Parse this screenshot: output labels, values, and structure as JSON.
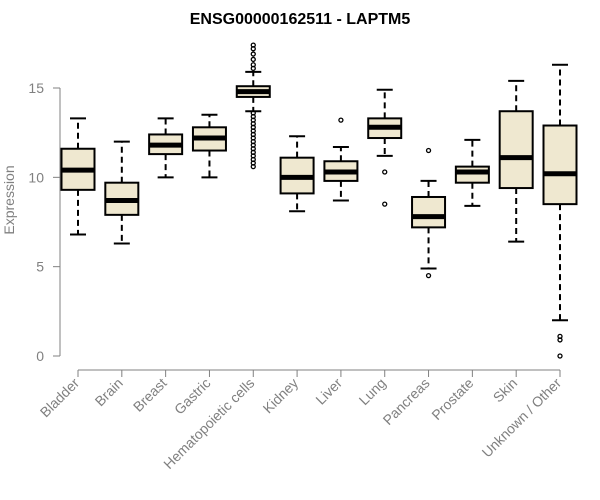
{
  "chart_data": {
    "type": "boxplot",
    "title": "ENSG00000162511 - LAPTM5",
    "xlabel": "",
    "ylabel": "Expression",
    "ylim": [
      0,
      16.3
    ],
    "yticks": [
      0,
      5,
      10,
      15
    ],
    "grid": false,
    "legend": "none",
    "box_fill": "#efe8d0",
    "categories": [
      "Bladder",
      "Brain",
      "Breast",
      "Gastric",
      "Hematopoietic cells",
      "Kidney",
      "Liver",
      "Lung",
      "Pancreas",
      "Prostate",
      "Skin",
      "Unknown / Other"
    ],
    "boxes": [
      {
        "category": "Bladder",
        "whisker_low": 6.8,
        "q1": 9.3,
        "median": 10.4,
        "q3": 11.6,
        "whisker_high": 13.3,
        "outliers": []
      },
      {
        "category": "Brain",
        "whisker_low": 6.3,
        "q1": 7.9,
        "median": 8.7,
        "q3": 9.7,
        "whisker_high": 12.0,
        "outliers": []
      },
      {
        "category": "Breast",
        "whisker_low": 10.0,
        "q1": 11.3,
        "median": 11.8,
        "q3": 12.4,
        "whisker_high": 13.3,
        "outliers": []
      },
      {
        "category": "Gastric",
        "whisker_low": 10.0,
        "q1": 11.5,
        "median": 12.2,
        "q3": 12.8,
        "whisker_high": 13.5,
        "outliers": []
      },
      {
        "category": "Hematopoietic cells",
        "whisker_low": 13.7,
        "q1": 14.5,
        "median": 14.8,
        "q3": 15.1,
        "whisker_high": 15.9,
        "outliers": [
          10.6,
          10.8,
          11.0,
          11.2,
          11.4,
          11.6,
          11.8,
          12.0,
          12.2,
          12.4,
          12.6,
          12.8,
          13.0,
          13.2,
          13.4,
          13.6,
          16.1,
          16.3,
          16.6,
          16.9,
          17.2,
          17.4
        ]
      },
      {
        "category": "Kidney",
        "whisker_low": 8.1,
        "q1": 9.1,
        "median": 10.0,
        "q3": 11.1,
        "whisker_high": 12.3,
        "outliers": []
      },
      {
        "category": "Liver",
        "whisker_low": 8.7,
        "q1": 9.8,
        "median": 10.3,
        "q3": 10.9,
        "whisker_high": 11.7,
        "outliers": [
          13.2
        ]
      },
      {
        "category": "Lung",
        "whisker_low": 11.2,
        "q1": 12.2,
        "median": 12.8,
        "q3": 13.3,
        "whisker_high": 14.9,
        "outliers": [
          10.3,
          8.5
        ]
      },
      {
        "category": "Pancreas",
        "whisker_low": 4.9,
        "q1": 7.2,
        "median": 7.8,
        "q3": 8.9,
        "whisker_high": 9.8,
        "outliers": [
          11.5,
          4.5
        ]
      },
      {
        "category": "Prostate",
        "whisker_low": 8.4,
        "q1": 9.7,
        "median": 10.3,
        "q3": 10.6,
        "whisker_high": 12.1,
        "outliers": []
      },
      {
        "category": "Skin",
        "whisker_low": 6.4,
        "q1": 9.4,
        "median": 11.1,
        "q3": 13.7,
        "whisker_high": 15.4,
        "outliers": []
      },
      {
        "category": "Unknown / Other",
        "whisker_low": 2.0,
        "q1": 8.5,
        "median": 10.2,
        "q3": 12.9,
        "whisker_high": 16.3,
        "outliers": [
          1.1,
          0.9,
          0.0
        ]
      }
    ]
  }
}
